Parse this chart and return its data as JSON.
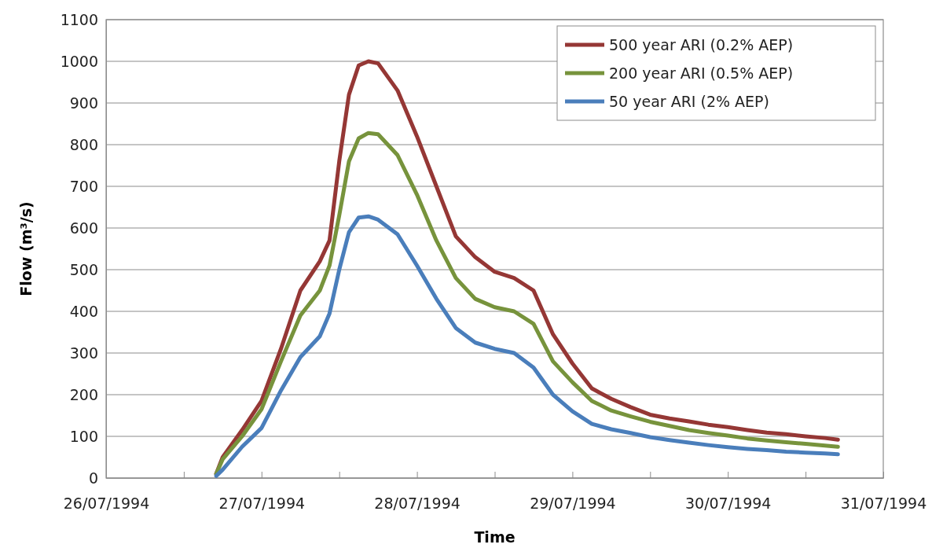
{
  "chart_data": {
    "type": "line",
    "xlabel": "Time",
    "ylabel": "Flow (m³/s)",
    "x": [
      "1994-07-26T17:00",
      "1994-07-26T18:00",
      "1994-07-26T21:00",
      "1994-07-27T00:00",
      "1994-07-27T03:00",
      "1994-07-27T06:00",
      "1994-07-27T09:00",
      "1994-07-27T10:30",
      "1994-07-27T12:00",
      "1994-07-27T13:30",
      "1994-07-27T15:00",
      "1994-07-27T16:30",
      "1994-07-27T18:00",
      "1994-07-27T21:00",
      "1994-07-28T00:00",
      "1994-07-28T03:00",
      "1994-07-28T06:00",
      "1994-07-28T09:00",
      "1994-07-28T12:00",
      "1994-07-28T15:00",
      "1994-07-28T18:00",
      "1994-07-28T21:00",
      "1994-07-29T00:00",
      "1994-07-29T03:00",
      "1994-07-29T06:00",
      "1994-07-29T09:00",
      "1994-07-29T12:00",
      "1994-07-29T15:00",
      "1994-07-29T18:00",
      "1994-07-29T21:00",
      "1994-07-30T00:00",
      "1994-07-30T03:00",
      "1994-07-30T06:00",
      "1994-07-30T09:00",
      "1994-07-30T12:00",
      "1994-07-30T15:00",
      "1994-07-30T17:00"
    ],
    "series": [
      {
        "name": "500 year ARI (0.2% AEP)",
        "color": "#953735",
        "values": [
          10,
          50,
          115,
          185,
          310,
          450,
          520,
          570,
          760,
          920,
          990,
          1000,
          995,
          930,
          820,
          700,
          580,
          530,
          495,
          480,
          450,
          345,
          275,
          215,
          190,
          170,
          152,
          143,
          136,
          128,
          122,
          115,
          109,
          105,
          100,
          96,
          92
        ]
      },
      {
        "name": "200 year ARI (0.5% AEP)",
        "color": "#77933c",
        "values": [
          10,
          45,
          100,
          165,
          280,
          390,
          450,
          510,
          630,
          760,
          815,
          828,
          825,
          775,
          680,
          570,
          480,
          430,
          410,
          400,
          370,
          280,
          230,
          185,
          162,
          148,
          135,
          125,
          115,
          108,
          102,
          95,
          90,
          86,
          82,
          78,
          75
        ]
      },
      {
        "name": "50 year ARI (2% AEP)",
        "color": "#4a7ebb",
        "values": [
          5,
          20,
          75,
          120,
          210,
          290,
          340,
          395,
          500,
          590,
          625,
          628,
          620,
          585,
          510,
          430,
          360,
          325,
          310,
          300,
          265,
          200,
          160,
          130,
          117,
          108,
          98,
          91,
          85,
          79,
          74,
          70,
          67,
          63,
          61,
          59,
          57
        ]
      }
    ],
    "xlim": [
      "1994-07-26",
      "1994-07-31"
    ],
    "xticks": [
      {
        "value": "1994-07-26",
        "label": "26/07/1994"
      },
      {
        "value": "1994-07-26T12:00",
        "label": null
      },
      {
        "value": "1994-07-27",
        "label": "27/07/1994"
      },
      {
        "value": "1994-07-27T12:00",
        "label": null
      },
      {
        "value": "1994-07-28",
        "label": "28/07/1994"
      },
      {
        "value": "1994-07-28T12:00",
        "label": null
      },
      {
        "value": "1994-07-29",
        "label": "29/07/1994"
      },
      {
        "value": "1994-07-29T12:00",
        "label": null
      },
      {
        "value": "1994-07-30",
        "label": "30/07/1994"
      },
      {
        "value": "1994-07-30T12:00",
        "label": null
      },
      {
        "value": "1994-07-31",
        "label": "31/07/1994"
      }
    ],
    "ylim": [
      0,
      1100
    ],
    "yticks": [
      0,
      100,
      200,
      300,
      400,
      500,
      600,
      700,
      800,
      900,
      1000,
      1100
    ],
    "grid": "y",
    "legend": "top right"
  }
}
